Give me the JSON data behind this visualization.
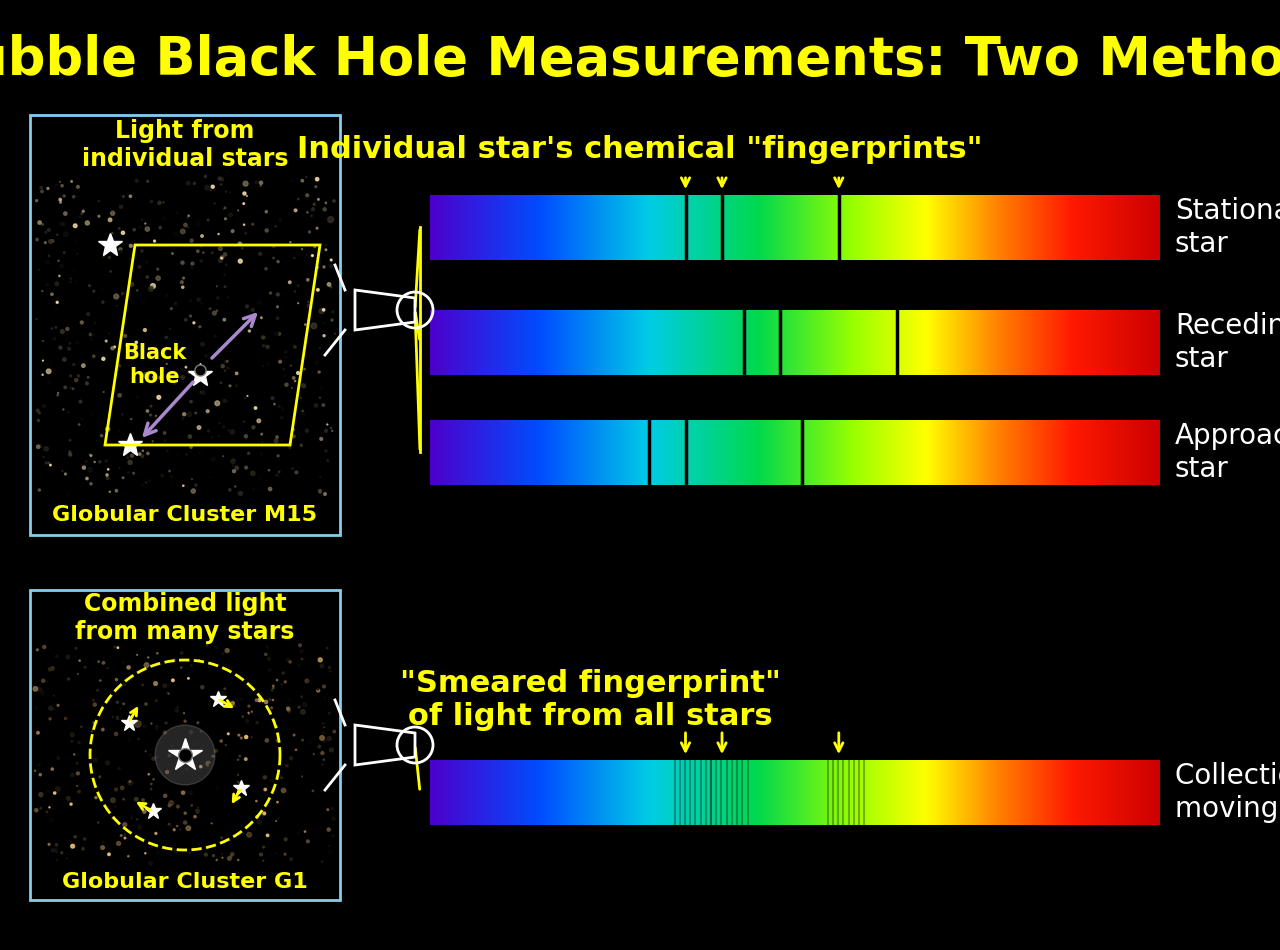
{
  "title": "Hubble Black Hole Measurements: Two Methods",
  "title_color": "#FFFF00",
  "title_fontsize": 38,
  "bg_color": "#000000",
  "panel1_label": "Light from\nindividual stars",
  "panel1_cluster": "Globular Cluster M15",
  "panel2_label": "Combined light\nfrom many stars",
  "panel2_cluster": "Globular Cluster G1",
  "panel_label_color": "#FFFF00",
  "panel_border_color": "#87CEEB",
  "fingerprint_label": "Individual star's chemical \"fingerprints\"",
  "smeared_label": "\"Smeared fingerprint\"\nof light from all stars",
  "label_color": "#FFFF00",
  "spectra": [
    {
      "label": "Stationary\nstar",
      "lines": [
        0.42,
        0.45,
        0.54
      ],
      "line_shift": 0.0
    },
    {
      "label": "Receding\nstar",
      "lines": [
        0.42,
        0.45,
        0.54
      ],
      "line_shift": 0.06
    },
    {
      "label": "Approaching\nstar",
      "lines": [
        0.42,
        0.45,
        0.54
      ],
      "line_shift": -0.06
    }
  ],
  "smeared_spectrum": {
    "label": "Collection of\nmoving stars",
    "blur": true
  },
  "arrow_color": "#FFFF00",
  "line_color": "#000000",
  "label_fontsize": 20,
  "cluster_fontsize": 18,
  "spec_label_fontsize": 20,
  "fingerprint_fontsize": 22
}
